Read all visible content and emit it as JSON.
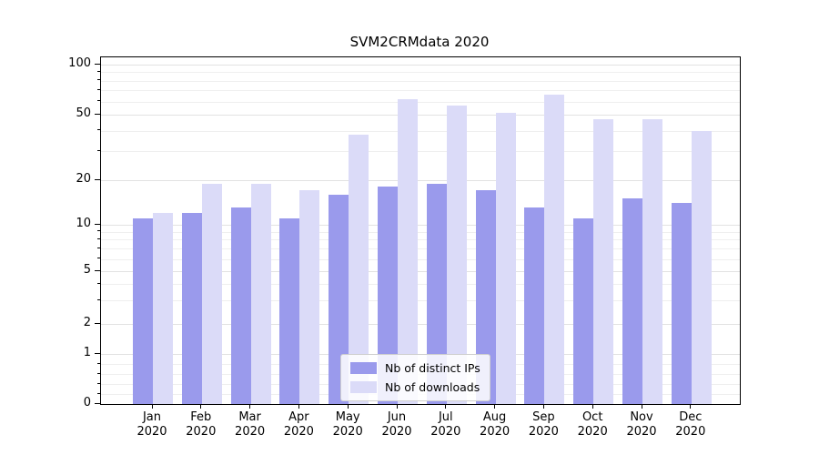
{
  "chart_data": {
    "type": "bar",
    "title": "SVM2CRMdata 2020",
    "xlabel": "",
    "ylabel": "",
    "categories": [
      "Jan",
      "Feb",
      "Mar",
      "Apr",
      "May",
      "Jun",
      "Jul",
      "Aug",
      "Sep",
      "Oct",
      "Nov",
      "Dec"
    ],
    "year_label": "2020",
    "series": [
      {
        "name": "Nb of distinct IPs",
        "color": "#9a9aec",
        "values": [
          11,
          12,
          13,
          11,
          16,
          18,
          19,
          17,
          13,
          11,
          15,
          14
        ]
      },
      {
        "name": "Nb of downloads",
        "color": "#dbdbf8",
        "values": [
          12,
          19,
          19,
          17,
          38,
          62,
          57,
          51,
          66,
          47,
          47,
          40
        ]
      }
    ],
    "yscale": "symlog",
    "y_major_ticks": [
      0,
      1,
      2,
      5,
      10,
      20,
      50,
      100
    ],
    "y_minor_ticks": [
      0.2,
      0.4,
      0.6,
      0.8,
      3,
      4,
      6,
      7,
      8,
      9,
      30,
      40,
      60,
      70,
      80,
      90
    ],
    "ylim": [
      0,
      110
    ],
    "grid": "horizontal",
    "legend_position": "lower center"
  }
}
